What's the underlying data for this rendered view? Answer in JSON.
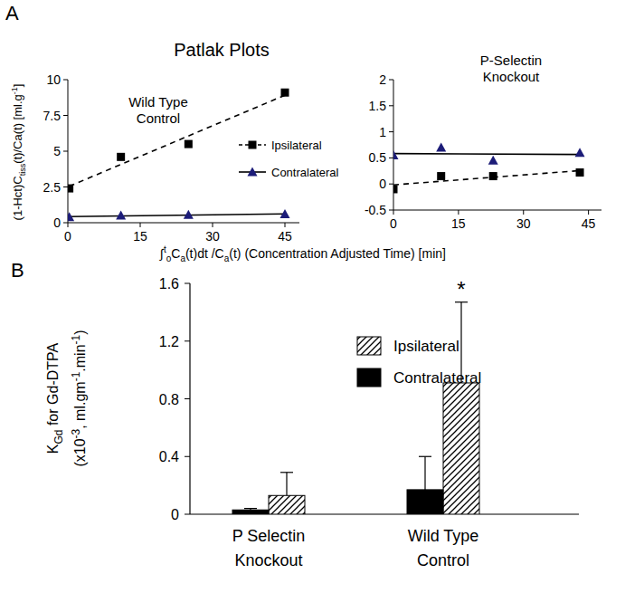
{
  "figure": {
    "panel_labels": [
      "A",
      "B"
    ],
    "title": "Patlak Plots",
    "ylabel": [
      {
        "text": "(1-Hct)C"
      },
      {
        "sub": "tiss"
      },
      {
        "text": "(t)/Ca(t)  [ml.g"
      },
      {
        "sup": "-1"
      },
      {
        "text": "]"
      }
    ],
    "xlabel": [
      {
        "text": "∫"
      },
      {
        "sup": "t"
      },
      {
        "sub": "o"
      },
      {
        "text": "C"
      },
      {
        "sub": "a"
      },
      {
        "text": "(t)dt /C"
      },
      {
        "sub": "a"
      },
      {
        "text": "(t) (Concentration Adjusted Time) [min]"
      }
    ]
  },
  "chart_data": [
    {
      "type": "scatter",
      "subtitle": "Wild Type\nControl",
      "x": [
        0.3,
        11,
        25,
        45
      ],
      "xlim": [
        0,
        48
      ],
      "xticks": [
        0,
        15,
        30,
        45
      ],
      "ylim": [
        0,
        10
      ],
      "yticks": [
        0,
        2.5,
        5,
        7.5,
        10
      ],
      "legend": "right",
      "series": [
        {
          "name": "Ipsilateral",
          "color": "#000000",
          "marker": "square",
          "line_style": "dashed",
          "values": [
            2.4,
            4.6,
            5.5,
            9.1
          ]
        },
        {
          "name": "Contralateral",
          "color": "#1c1c78",
          "marker": "triangle",
          "line_style": "solid",
          "values": [
            0.4,
            0.5,
            0.55,
            0.6
          ]
        }
      ]
    },
    {
      "type": "scatter",
      "subtitle": "P-Selectin\nKnockout",
      "x": [
        0,
        11,
        23,
        43
      ],
      "xlim": [
        0,
        48
      ],
      "xticks": [
        0,
        15,
        30,
        45
      ],
      "ylim": [
        -0.5,
        2
      ],
      "yticks": [
        -0.5,
        0,
        0.5,
        1,
        1.5,
        2
      ],
      "series": [
        {
          "color": "#000000",
          "marker": "square",
          "line_style": "dashed",
          "values": [
            -0.1,
            0.15,
            0.15,
            0.22
          ]
        },
        {
          "color": "#1c1c78",
          "marker": "triangle",
          "line_style": "solid",
          "values": [
            0.55,
            0.7,
            0.45,
            0.6
          ]
        }
      ]
    },
    {
      "type": "bar",
      "ylabel": [
        [
          {
            "text": "K"
          },
          {
            "sub": "Gd"
          },
          {
            "text": " for Gd-DTPA"
          }
        ],
        [
          {
            "text": "(x10"
          },
          {
            "sup": "-3"
          },
          {
            "text": ", ml.gm"
          },
          {
            "sup": "-1"
          },
          {
            "text": ".min"
          },
          {
            "sup": "-1"
          },
          {
            "text": ")"
          }
        ]
      ],
      "categories": [
        "P Selectin\nKnockout",
        "Wild Type\nControl"
      ],
      "ylim": [
        0,
        1.6
      ],
      "yticks": [
        0,
        0.4,
        0.8,
        1.2,
        1.6
      ],
      "legend": "top",
      "series": [
        {
          "name": "Ipsilateral",
          "color": "#000000",
          "line_style": "hatched",
          "values": [
            0.13,
            0.91
          ],
          "errors": [
            0.16,
            0.56
          ]
        },
        {
          "name": "Contralateral",
          "color": "#000000",
          "line_style": "solid",
          "values": [
            0.03,
            0.17
          ],
          "errors": [
            0.01,
            0.23
          ]
        }
      ],
      "annotations": [
        {
          "text": "*",
          "series": 0,
          "index": 1
        }
      ]
    }
  ]
}
